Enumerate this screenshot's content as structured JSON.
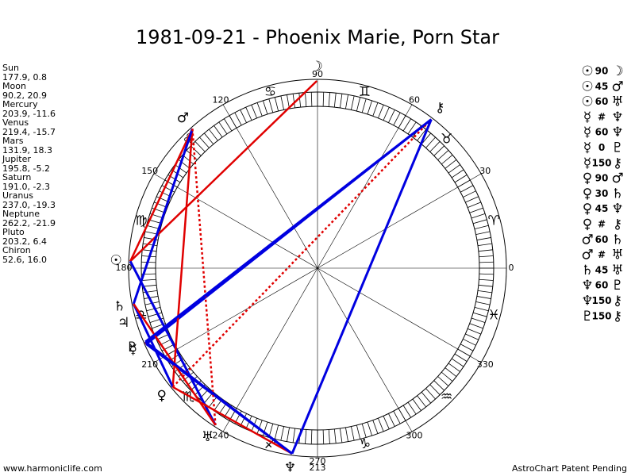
{
  "title": "1981-09-21 - Phoenix Marie, Porn Star",
  "planets": [
    {
      "name": "Sun",
      "coords": "177.9, 0.8",
      "glyph": "☉"
    },
    {
      "name": "Moon",
      "coords": "90.2, 20.9",
      "glyph": "☽"
    },
    {
      "name": "Mercury",
      "coords": "203.9, -11.6",
      "glyph": "☿"
    },
    {
      "name": "Venus",
      "coords": "219.4, -15.7",
      "glyph": "♀"
    },
    {
      "name": "Mars",
      "coords": "131.9, 18.3",
      "glyph": "♂"
    },
    {
      "name": "Jupiter",
      "coords": "195.8, -5.2",
      "glyph": "♃"
    },
    {
      "name": "Saturn",
      "coords": "191.0, -2.3",
      "glyph": "♄"
    },
    {
      "name": "Uranus",
      "coords": "237.0, -19.3",
      "glyph": "♅"
    },
    {
      "name": "Neptune",
      "coords": "262.2, -21.9",
      "glyph": "♆"
    },
    {
      "name": "Pluto",
      "coords": "203.2, 6.4",
      "glyph": "♇"
    },
    {
      "name": "Chiron",
      "coords": "52.6, 16.0",
      "glyph": "⚷"
    }
  ],
  "aspects": [
    {
      "from": "☉",
      "aspect": "90",
      "to": "☽",
      "color": "#e00000",
      "dashed": false
    },
    {
      "from": "☉",
      "aspect": "45",
      "to": "♂",
      "color": "#e00000",
      "dashed": false
    },
    {
      "from": "☉",
      "aspect": "60",
      "to": "♅",
      "color": "#0000e0",
      "dashed": false
    },
    {
      "from": "☿",
      "aspect": "#",
      "to": "♆",
      "color": "#e00000",
      "dashed": true
    },
    {
      "from": "☿",
      "aspect": "60",
      "to": "♆",
      "color": "#0000e0",
      "dashed": false
    },
    {
      "from": "☿",
      "aspect": "0",
      "to": "♇",
      "color": "#e00000",
      "dashed": false
    },
    {
      "from": "☿",
      "aspect": "150",
      "to": "⚷",
      "color": "#0000e0",
      "dashed": false
    },
    {
      "from": "♀",
      "aspect": "90",
      "to": "♂",
      "color": "#e00000",
      "dashed": false
    },
    {
      "from": "♀",
      "aspect": "30",
      "to": "♄",
      "color": "#0000e0",
      "dashed": false
    },
    {
      "from": "♀",
      "aspect": "45",
      "to": "♆",
      "color": "#e00000",
      "dashed": false
    },
    {
      "from": "♀",
      "aspect": "#",
      "to": "⚷",
      "color": "#e00000",
      "dashed": true
    },
    {
      "from": "♂",
      "aspect": "60",
      "to": "♄",
      "color": "#0000e0",
      "dashed": false
    },
    {
      "from": "♂",
      "aspect": "#",
      "to": "♅",
      "color": "#e00000",
      "dashed": true
    },
    {
      "from": "♄",
      "aspect": "45",
      "to": "♅",
      "color": "#e00000",
      "dashed": false
    },
    {
      "from": "♆",
      "aspect": "60",
      "to": "♇",
      "color": "#0000e0",
      "dashed": false
    },
    {
      "from": "♆",
      "aspect": "150",
      "to": "⚷",
      "color": "#0000e0",
      "dashed": false
    },
    {
      "from": "♇",
      "aspect": "150",
      "to": "⚷",
      "color": "#0000e0",
      "dashed": false
    }
  ],
  "degree_labels": [
    "0",
    "30",
    "60",
    "90",
    "120",
    "150",
    "180",
    "210",
    "240",
    "270",
    "300",
    "330"
  ],
  "zodiac": [
    "♈",
    "♉",
    "♊",
    "♋",
    "♌",
    "♍",
    "♎",
    "♏",
    "♐",
    "♑",
    "♒",
    "♓"
  ],
  "extra_label": "213",
  "footer": {
    "left": "www.harmoniclife.com",
    "right": "AstroChart Patent Pending"
  }
}
